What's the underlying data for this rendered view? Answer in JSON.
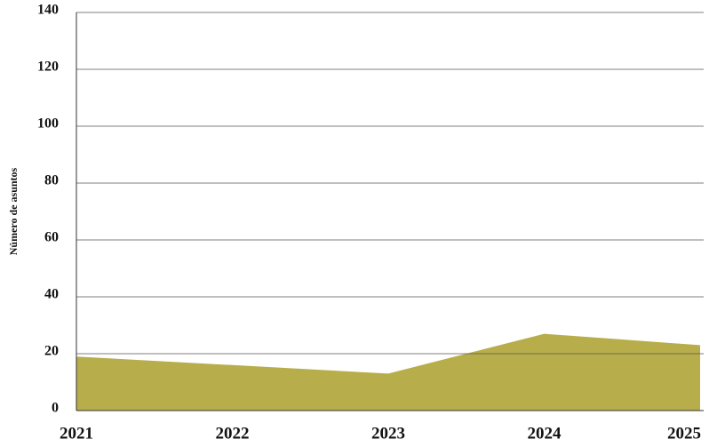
{
  "chart_data": {
    "type": "area",
    "y_label": "Número de asuntos",
    "categories": [
      "2021",
      "2022",
      "2023",
      "2024",
      "2025"
    ],
    "series": [
      {
        "name": null,
        "color": "#b8ad4b",
        "values": [
          19,
          16,
          13,
          27,
          23
        ]
      }
    ],
    "ylim": [
      0,
      140
    ],
    "yticks": [
      0,
      20,
      40,
      60,
      80,
      100,
      120,
      140
    ],
    "grid": true
  }
}
